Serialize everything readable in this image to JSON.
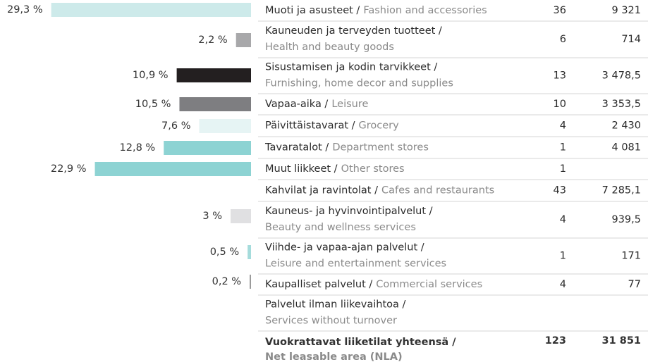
{
  "chart_data": {
    "type": "bar",
    "values": [
      29.3,
      2.2,
      10.9,
      10.5,
      7.6,
      12.8,
      null,
      22.9,
      3,
      0.5,
      0.2,
      null
    ],
    "value_labels": [
      "29,3 %",
      "2,2 %",
      "10,9 %",
      "10,5 %",
      "7,6 %",
      "12,8 %",
      null,
      "22,9 %",
      "3 %",
      "0,5 %",
      "0,2 %",
      null
    ],
    "colors": [
      "#cdeaea",
      "#a8a8aa",
      "#231f20",
      "#7e7e81",
      "#e6f4f4",
      "#8dd3d3",
      null,
      "#8dd3d3",
      "#e0e0e2",
      "#a5dcdc",
      "#9a9a9a",
      null
    ]
  },
  "table": {
    "rows": [
      [
        "Muoti ja asusteet /",
        "Fashion and accessories",
        "36",
        "9 321"
      ],
      [
        "Kauneuden ja terveyden tuotteet /",
        "Health and beauty goods",
        "6",
        "714"
      ],
      [
        "Sisustamisen ja kodin tarvikkeet /",
        "Furnishing, home decor and supplies",
        "13",
        "3 478,5"
      ],
      [
        "Vapaa-aika /",
        "Leisure",
        "10",
        "3 353,5"
      ],
      [
        "Päivittäistavarat /",
        "Grocery",
        "4",
        "2 430"
      ],
      [
        "Tavaratalot /",
        "Department stores",
        "1",
        "4 081"
      ],
      [
        "Muut liikkeet /",
        "Other stores",
        "1",
        null
      ],
      [
        "Kahvilat ja ravintolat /",
        "Cafes and restaurants",
        "43",
        "7 285,1"
      ],
      [
        "Kauneus- ja hyvinvointipalvelut /",
        "Beauty and wellness services",
        "4",
        "939,5"
      ],
      [
        "Viihde- ja vapaa-ajan palvelut /",
        "Leisure and entertainment services",
        "1",
        "171"
      ],
      [
        "Kaupalliset palvelut /",
        "Commercial services",
        "4",
        "77"
      ],
      [
        "Palvelut ilman liikevaihtoa /",
        "Services without turnover",
        null,
        null
      ]
    ],
    "total": [
      "Vuokrattavat liiketilat yhteensä /",
      "Net leasable area (NLA)",
      "123",
      "31 851"
    ]
  }
}
